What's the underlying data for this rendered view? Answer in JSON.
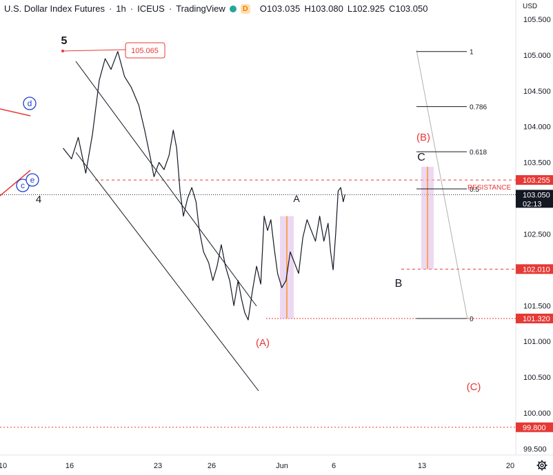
{
  "header": {
    "symbol": "U.S. Dollar Index Futures",
    "interval": "1h",
    "exchange": "ICEUS",
    "source": "TradingView",
    "badge": "D",
    "open": "O103.035",
    "high": "H103.080",
    "low": "L102.925",
    "close": "C103.050"
  },
  "currency": "USD",
  "chart_data": {
    "type": "line",
    "title": "U.S. Dollar Index Futures · 1h · ICEUS · TradingView",
    "ylim": [
      99.5,
      105.5
    ],
    "y_ticks": [
      "105.500",
      "105.000",
      "104.500",
      "104.000",
      "103.500",
      "103.000",
      "102.500",
      "102.000",
      "101.500",
      "101.000",
      "100.500",
      "100.000",
      "99.500"
    ],
    "x_ticks": [
      "10",
      "16",
      "23",
      "26",
      "Jun",
      "6",
      "13",
      "20"
    ],
    "series": [
      {
        "values": [
          [
            7.5,
            103.7
          ],
          [
            8.5,
            103.55
          ],
          [
            9.3,
            103.85
          ],
          [
            10.2,
            103.35
          ],
          [
            11,
            103.9
          ],
          [
            11.8,
            104.65
          ],
          [
            12.5,
            104.95
          ],
          [
            13.2,
            104.8
          ],
          [
            14,
            105.05
          ],
          [
            14.8,
            104.7
          ],
          [
            15.6,
            104.55
          ],
          [
            16.5,
            104.3
          ],
          [
            17.2,
            103.95
          ],
          [
            17.9,
            103.55
          ],
          [
            18.3,
            103.3
          ],
          [
            18.9,
            103.5
          ],
          [
            19.5,
            103.4
          ],
          [
            20.1,
            103.6
          ],
          [
            20.6,
            103.95
          ],
          [
            21,
            103.7
          ],
          [
            21.4,
            103.1
          ],
          [
            21.8,
            102.75
          ],
          [
            22.3,
            103.0
          ],
          [
            22.8,
            103.15
          ],
          [
            23.3,
            102.95
          ],
          [
            23.7,
            102.55
          ],
          [
            24.2,
            102.25
          ],
          [
            24.8,
            102.1
          ],
          [
            25.3,
            101.85
          ],
          [
            25.8,
            102.05
          ],
          [
            26.3,
            102.35
          ],
          [
            26.8,
            102.05
          ],
          [
            27.3,
            101.85
          ],
          [
            27.8,
            101.5
          ],
          [
            28.3,
            101.85
          ],
          [
            28.7,
            101.6
          ],
          [
            29.1,
            101.4
          ],
          [
            29.5,
            101.3
          ],
          [
            30,
            101.7
          ],
          [
            30.5,
            102.05
          ],
          [
            31,
            101.8
          ],
          [
            31.4,
            102.75
          ],
          [
            31.8,
            102.55
          ],
          [
            32.2,
            102.7
          ],
          [
            32.6,
            102.3
          ],
          [
            33,
            101.95
          ],
          [
            33.5,
            101.75
          ],
          [
            34,
            101.85
          ],
          [
            34.5,
            102.25
          ],
          [
            35,
            102.1
          ],
          [
            35.5,
            101.95
          ],
          [
            36,
            102.45
          ],
          [
            36.5,
            102.7
          ],
          [
            37,
            102.55
          ],
          [
            37.5,
            102.4
          ],
          [
            38,
            102.75
          ],
          [
            38.5,
            102.4
          ],
          [
            39,
            102.65
          ],
          [
            39.3,
            102.25
          ],
          [
            39.6,
            102.0
          ],
          [
            39.9,
            102.5
          ],
          [
            40.2,
            103.1
          ],
          [
            40.5,
            103.15
          ],
          [
            40.8,
            102.95
          ],
          [
            41,
            103.05
          ]
        ]
      }
    ],
    "price_labels": [
      {
        "value": 103.255,
        "text": "103.255",
        "color": "#e53935"
      },
      {
        "value": 103.05,
        "text": "103.050",
        "sub": "02:13",
        "color": "#131722"
      },
      {
        "value": 102.01,
        "text": "102.010",
        "color": "#e53935"
      },
      {
        "value": 101.32,
        "text": "101.320",
        "color": "#e53935"
      },
      {
        "value": 99.8,
        "text": "99.800",
        "color": "#e53935"
      }
    ],
    "fib_levels": [
      {
        "label": "1",
        "value": 105.05
      },
      {
        "label": "0.786",
        "value": 104.28
      },
      {
        "label": "0.618",
        "value": 103.65
      },
      {
        "label": "0.5",
        "value": 103.13
      },
      {
        "label": "0",
        "value": 101.32
      }
    ],
    "annotations": {
      "high_marker": "105.065",
      "resistance": "RESISTANCE",
      "wave_5": "5",
      "wave_4": "4",
      "wave_A_black": "A",
      "wave_B_black": "B",
      "wave_C_black": "C",
      "wave_A_red": "(A)",
      "wave_B_red": "(B)",
      "wave_C_red": "(C)",
      "circle_d": "d",
      "circle_c": "c",
      "circle_e": "e"
    }
  }
}
